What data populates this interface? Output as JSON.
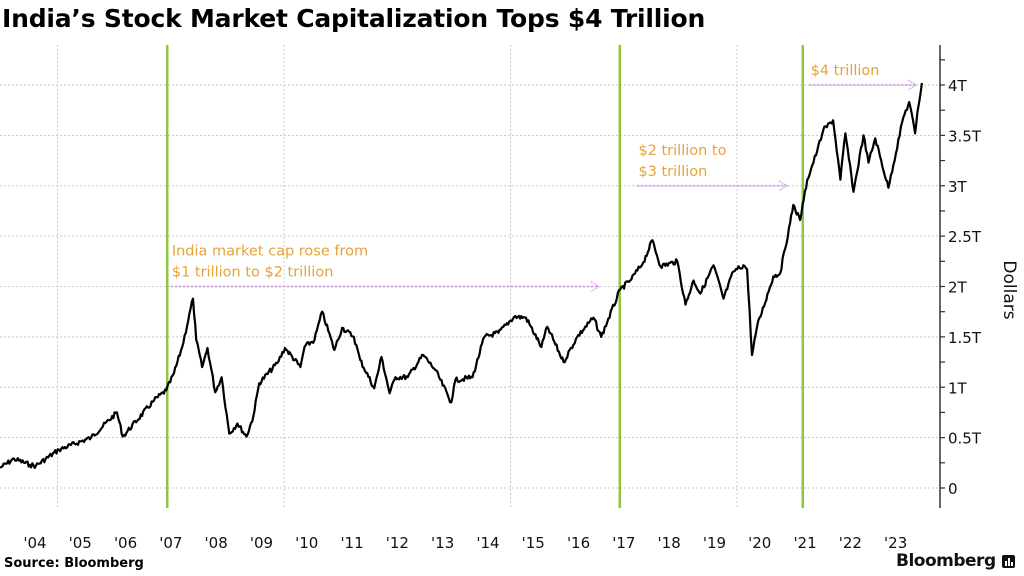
{
  "title": "India’s Stock Market Capitalization Tops $4 Trillion",
  "source": "Source: Bloomberg",
  "logo": "Bloomberg",
  "colors": {
    "line": "#000000",
    "event_line": "#8dc63f",
    "annotation_text": "#e6a33a",
    "annotation_arrow": "#d59ff0",
    "grid": "#c8c8c8"
  },
  "chart_data": {
    "type": "line",
    "title": "India’s Stock Market Capitalization Tops $4 Trillion",
    "ylabel": "Dollars",
    "xlabel": "",
    "ylim": [
      0,
      4.4
    ],
    "xlim": [
      2003.73,
      2024.2
    ],
    "y_axis_position": "right",
    "grid": true,
    "yticks": [
      {
        "value": 0,
        "label": "0"
      },
      {
        "value": 0.5,
        "label": "0.5T"
      },
      {
        "value": 1,
        "label": "1T"
      },
      {
        "value": 1.5,
        "label": "1.5T"
      },
      {
        "value": 2,
        "label": "2T"
      },
      {
        "value": 2.5,
        "label": "2.5T"
      },
      {
        "value": 3,
        "label": "3T"
      },
      {
        "value": 3.5,
        "label": "3.5T"
      },
      {
        "value": 4,
        "label": "4T"
      }
    ],
    "xticks": [
      {
        "value": 2004.5,
        "label": "'04"
      },
      {
        "value": 2005.5,
        "label": "'05"
      },
      {
        "value": 2006.5,
        "label": "'06"
      },
      {
        "value": 2007.5,
        "label": "'07"
      },
      {
        "value": 2008.5,
        "label": "'08"
      },
      {
        "value": 2009.5,
        "label": "'09"
      },
      {
        "value": 2010.5,
        "label": "'10"
      },
      {
        "value": 2011.5,
        "label": "'11"
      },
      {
        "value": 2012.5,
        "label": "'12"
      },
      {
        "value": 2013.5,
        "label": "'13"
      },
      {
        "value": 2014.5,
        "label": "'14"
      },
      {
        "value": 2015.5,
        "label": "'15"
      },
      {
        "value": 2016.5,
        "label": "'16"
      },
      {
        "value": 2017.5,
        "label": "'17"
      },
      {
        "value": 2018.5,
        "label": "'18"
      },
      {
        "value": 2019.5,
        "label": "'19"
      },
      {
        "value": 2020.5,
        "label": "'20"
      },
      {
        "value": 2021.5,
        "label": "'21"
      },
      {
        "value": 2022.5,
        "label": "'22"
      },
      {
        "value": 2023.5,
        "label": "'23"
      }
    ],
    "event_lines": [
      2007.42,
      2017.41,
      2021.45
    ],
    "series": [
      {
        "x": [
          2003.73,
          2004.04,
          2004.39,
          2004.52,
          2005.03,
          2005.74,
          2006.31,
          2006.44,
          2007.13,
          2007.4,
          2007.57,
          2007.75,
          2007.99,
          2008.06,
          2008.19,
          2008.31,
          2008.48,
          2008.62,
          2008.79,
          2008.97,
          2009.17,
          2009.32,
          2009.45,
          2009.85,
          2010.02,
          2010.36,
          2010.45,
          2010.67,
          2010.84,
          2011.11,
          2011.28,
          2011.54,
          2011.68,
          2011.99,
          2012.15,
          2012.33,
          2012.46,
          2012.73,
          2013.07,
          2013.34,
          2013.69,
          2013.78,
          2014.16,
          2014.42,
          2014.73,
          2015.08,
          2015.34,
          2015.68,
          2015.81,
          2016.17,
          2016.47,
          2016.83,
          2017.0,
          2017.42,
          2017.64,
          2017.93,
          2018.13,
          2018.31,
          2018.68,
          2018.86,
          2019.04,
          2019.19,
          2019.48,
          2019.7,
          2019.92,
          2020.14,
          2020.22,
          2020.33,
          2020.44,
          2020.8,
          2020.95,
          2021.17,
          2021.24,
          2021.39,
          2021.47,
          2021.55,
          2021.77,
          2021.9,
          2022.12,
          2022.28,
          2022.39,
          2022.57,
          2022.79,
          2022.9,
          2023.05,
          2023.34,
          2023.67,
          2023.8,
          2023.93,
          2023.98,
          2024.08
        ],
        "values": [
          0.2,
          0.29,
          0.23,
          0.22,
          0.38,
          0.5,
          0.75,
          0.51,
          0.87,
          0.97,
          1.14,
          1.4,
          1.88,
          1.47,
          1.2,
          1.39,
          0.95,
          1.1,
          0.54,
          0.64,
          0.51,
          0.71,
          1.04,
          1.24,
          1.39,
          1.2,
          1.4,
          1.47,
          1.75,
          1.37,
          1.59,
          1.5,
          1.27,
          0.99,
          1.3,
          0.94,
          1.1,
          1.1,
          1.32,
          1.17,
          0.85,
          1.07,
          1.1,
          1.5,
          1.54,
          1.7,
          1.69,
          1.4,
          1.6,
          1.25,
          1.5,
          1.69,
          1.5,
          1.97,
          2.06,
          2.24,
          2.46,
          2.2,
          2.25,
          1.82,
          2.06,
          1.93,
          2.21,
          1.88,
          2.15,
          2.21,
          2.17,
          1.32,
          1.6,
          2.1,
          2.13,
          2.63,
          2.81,
          2.66,
          2.86,
          3.06,
          3.35,
          3.55,
          3.65,
          3.06,
          3.52,
          2.94,
          3.5,
          3.23,
          3.47,
          2.98,
          3.68,
          3.83,
          3.52,
          3.73,
          4.02
        ]
      }
    ],
    "annotations": [
      {
        "lines": [
          "India market cap rose from",
          "$1 trillion to $2 trillion"
        ],
        "arrow_from": 2007.5,
        "arrow_to": 2016.95,
        "level": 2
      },
      {
        "lines": [
          "$2 trillion to",
          "$3 trillion"
        ],
        "arrow_from": 2017.8,
        "arrow_to": 2021.1,
        "level": 3
      },
      {
        "lines": [
          "$4 trillion"
        ],
        "arrow_from": 2021.6,
        "arrow_to": 2023.95,
        "level": 4
      }
    ]
  }
}
